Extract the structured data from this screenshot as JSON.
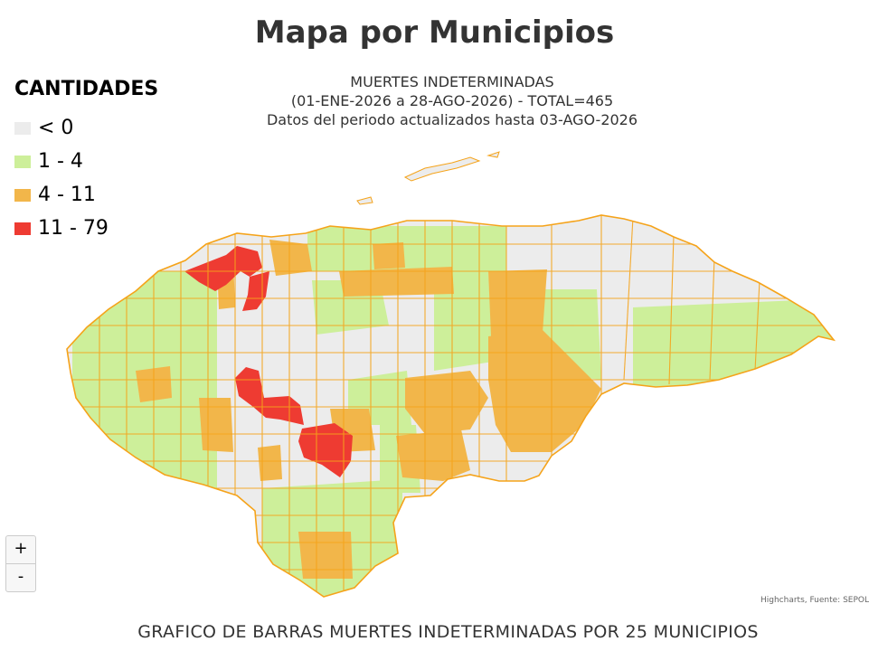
{
  "title": "Mapa por Municipios",
  "subtitle": {
    "line1": "MUERTES INDETERMINADAS",
    "line2": "(01-ENE-2026 a 28-AGO-2026) - TOTAL=465",
    "line3": "Datos del periodo actualizados hasta 03-AGO-2026"
  },
  "legend": {
    "title": "CANTIDADES",
    "items": [
      {
        "label": "< 0",
        "color": "#ececec"
      },
      {
        "label": "1 - 4",
        "color": "#cdef9a"
      },
      {
        "label": "4 - 11",
        "color": "#f2b64a"
      },
      {
        "label": "11 - 79",
        "color": "#ee3b32"
      }
    ]
  },
  "colors": {
    "border": "#f5a31a",
    "none": "#ececec",
    "low": "#cdef9a",
    "mid": "#f2b64a",
    "high": "#ee3b32"
  },
  "zoom": {
    "in_label": "+",
    "out_label": "-"
  },
  "credits": "Highcharts, Fuente: SEPOL",
  "caption": "GRAFICO DE BARRAS MUERTES INDETERMINADAS POR 25 MUNICIPIOS"
}
